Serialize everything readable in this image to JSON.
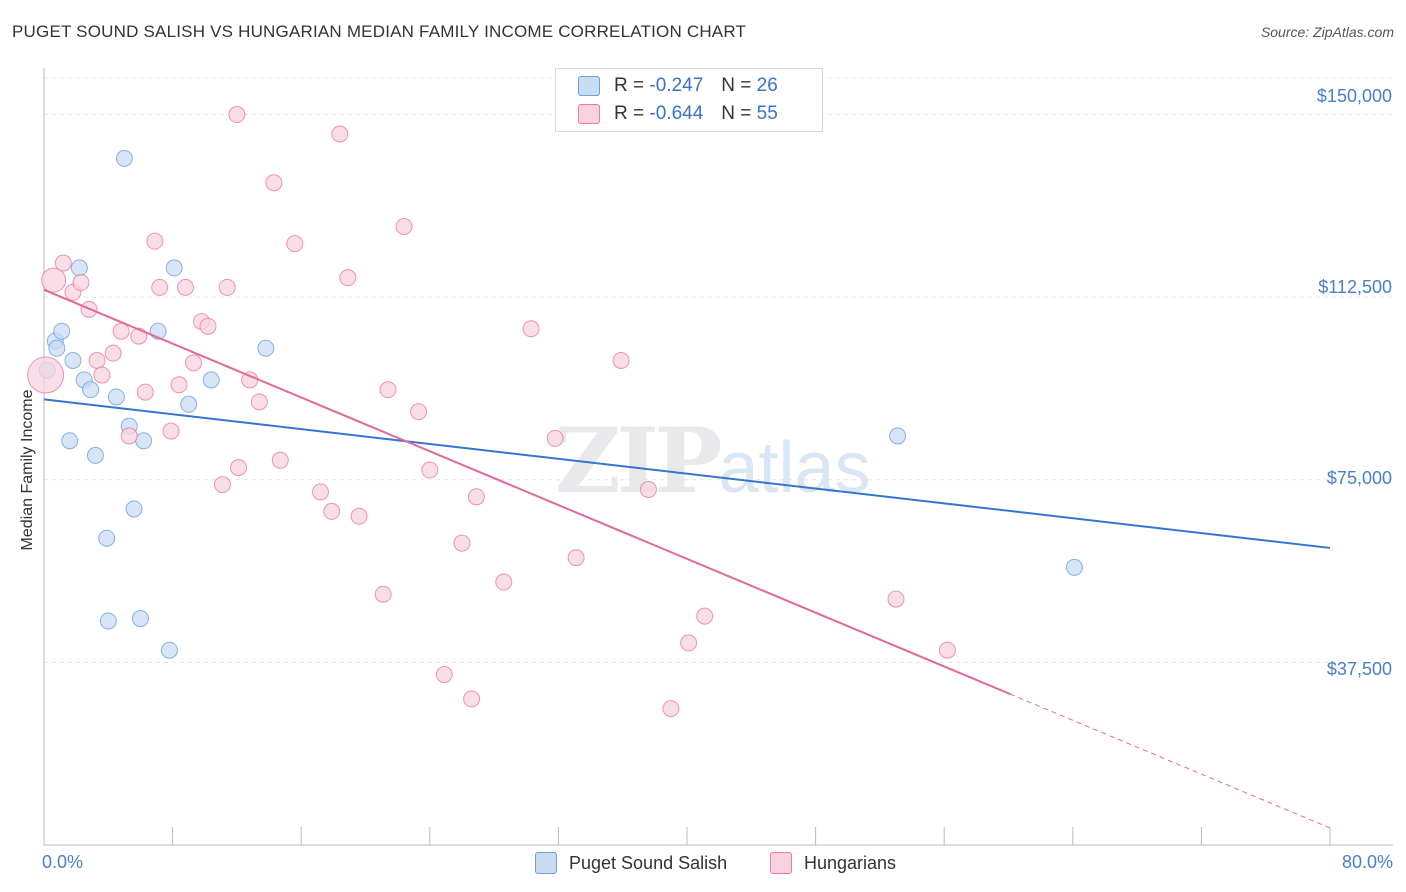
{
  "title": "PUGET SOUND SALISH VS HUNGARIAN MEDIAN FAMILY INCOME CORRELATION CHART",
  "source": "Source: ZipAtlas.com",
  "watermark": {
    "zip": "ZIP",
    "atlas": "atlas"
  },
  "colors": {
    "blue": "#6f9fdc",
    "blue_fill": "#c9dcf4",
    "pink": "#e87aa0",
    "pink_fill": "#f8d3df",
    "blue_line": "#3375d1",
    "pink_line": "#e2699a",
    "axis_label": "#4a7fc8"
  },
  "legend_top": {
    "rows": [
      {
        "r_label": "R = ",
        "r_value": "-0.247",
        "n_label": "N = ",
        "n_value": "26"
      },
      {
        "r_label": "R = ",
        "r_value": "-0.644",
        "n_label": "N = ",
        "n_value": "55"
      }
    ]
  },
  "legend_bottom": [
    "Puget Sound Salish",
    "Hungarians"
  ],
  "chart_data": {
    "type": "scatter",
    "xlabel": "",
    "ylabel": "Median Family Income",
    "xlim": [
      0,
      80
    ],
    "ylim": [
      0,
      157500
    ],
    "x_tick_labels": [
      "0.0%",
      "80.0%"
    ],
    "y_ticks": [
      37500,
      75000,
      112500,
      150000
    ],
    "y_tick_labels": [
      "$37,500",
      "$75,000",
      "$112,500",
      "$150,000"
    ],
    "grid": true,
    "series": [
      {
        "name": "Puget Sound Salish",
        "r": -0.247,
        "n": 26,
        "trend": {
          "x0": 0,
          "y0": 91500,
          "x1": 80,
          "y1": 61000
        },
        "points": [
          [
            0.2,
            97500
          ],
          [
            0.7,
            103500
          ],
          [
            0.8,
            102000
          ],
          [
            1.1,
            105500
          ],
          [
            1.6,
            83000
          ],
          [
            1.8,
            99500
          ],
          [
            2.2,
            118500
          ],
          [
            2.5,
            95500
          ],
          [
            2.9,
            93500
          ],
          [
            3.2,
            80000
          ],
          [
            3.9,
            63000
          ],
          [
            4.0,
            46000
          ],
          [
            4.5,
            92000
          ],
          [
            5.0,
            141000
          ],
          [
            5.3,
            86000
          ],
          [
            5.6,
            69000
          ],
          [
            6.0,
            46500
          ],
          [
            6.2,
            83000
          ],
          [
            7.1,
            105500
          ],
          [
            7.8,
            40000
          ],
          [
            8.1,
            118500
          ],
          [
            9.0,
            90500
          ],
          [
            10.4,
            95500
          ],
          [
            13.8,
            102000
          ],
          [
            53.1,
            84000
          ],
          [
            64.1,
            57000
          ]
        ]
      },
      {
        "name": "Hungarians",
        "r": -0.644,
        "n": 55,
        "trend": {
          "x0": 0,
          "y0": 114000,
          "x1": 60.1,
          "y1": 31000,
          "dash_x1": 80,
          "dash_y1": 3500
        },
        "points": [
          [
            0.1,
            96500
          ],
          [
            0.6,
            116000
          ],
          [
            1.2,
            119500
          ],
          [
            1.8,
            113500
          ],
          [
            2.3,
            115500
          ],
          [
            2.8,
            110000
          ],
          [
            3.3,
            99500
          ],
          [
            3.6,
            96500
          ],
          [
            4.3,
            101000
          ],
          [
            4.8,
            105500
          ],
          [
            5.3,
            84000
          ],
          [
            5.9,
            104500
          ],
          [
            6.3,
            93000
          ],
          [
            6.9,
            124000
          ],
          [
            7.2,
            114500
          ],
          [
            7.9,
            85000
          ],
          [
            8.4,
            94500
          ],
          [
            8.8,
            114500
          ],
          [
            9.3,
            99000
          ],
          [
            9.8,
            107500
          ],
          [
            10.2,
            106500
          ],
          [
            11.1,
            74000
          ],
          [
            11.4,
            114500
          ],
          [
            12.0,
            150000
          ],
          [
            12.1,
            77500
          ],
          [
            12.8,
            95500
          ],
          [
            13.4,
            91000
          ],
          [
            14.3,
            136000
          ],
          [
            14.7,
            79000
          ],
          [
            15.6,
            123500
          ],
          [
            17.2,
            72500
          ],
          [
            17.9,
            68500
          ],
          [
            18.4,
            146000
          ],
          [
            18.9,
            116500
          ],
          [
            19.6,
            67500
          ],
          [
            21.1,
            51500
          ],
          [
            21.4,
            93500
          ],
          [
            22.4,
            127000
          ],
          [
            23.3,
            89000
          ],
          [
            24.0,
            77000
          ],
          [
            24.9,
            35000
          ],
          [
            26.0,
            62000
          ],
          [
            26.6,
            30000
          ],
          [
            26.9,
            71500
          ],
          [
            28.6,
            54000
          ],
          [
            30.3,
            106000
          ],
          [
            31.8,
            83500
          ],
          [
            33.1,
            59000
          ],
          [
            35.9,
            99500
          ],
          [
            37.6,
            73000
          ],
          [
            39.0,
            28000
          ],
          [
            40.1,
            41500
          ],
          [
            41.1,
            47000
          ],
          [
            53.0,
            50500
          ],
          [
            56.2,
            40000
          ]
        ]
      }
    ]
  }
}
